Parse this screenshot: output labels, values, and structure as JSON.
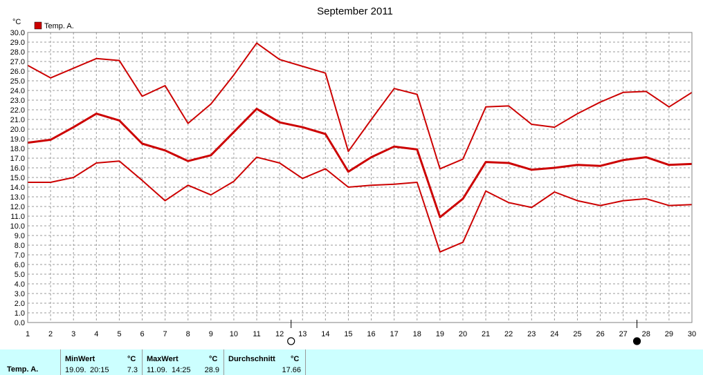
{
  "chart_data": {
    "type": "line",
    "title": "September 2011",
    "unit": "°C",
    "legend": [
      {
        "name": "Temp. A.",
        "color": "#cc0000"
      }
    ],
    "x": [
      1,
      2,
      3,
      4,
      5,
      6,
      7,
      8,
      9,
      10,
      11,
      12,
      13,
      14,
      15,
      16,
      17,
      18,
      19,
      20,
      21,
      22,
      23,
      24,
      25,
      26,
      27,
      28,
      29,
      30
    ],
    "ylim": [
      0,
      30
    ],
    "ytick_step": 1,
    "grid": true,
    "series": [
      {
        "role": "max",
        "values": [
          26.6,
          25.3,
          26.3,
          27.3,
          27.1,
          23.4,
          24.5,
          20.6,
          22.6,
          25.6,
          28.9,
          27.2,
          26.5,
          25.8,
          17.7,
          21.0,
          24.2,
          23.6,
          15.9,
          16.9,
          22.3,
          22.4,
          20.5,
          20.2,
          21.6,
          22.8,
          23.8,
          23.9,
          22.3,
          23.8
        ]
      },
      {
        "role": "mean",
        "values": [
          18.6,
          18.9,
          20.2,
          21.6,
          20.9,
          18.5,
          17.8,
          16.7,
          17.3,
          19.7,
          22.1,
          20.7,
          20.2,
          19.5,
          15.6,
          17.1,
          18.2,
          17.9,
          10.9,
          12.8,
          16.6,
          16.5,
          15.8,
          16.0,
          16.3,
          16.2,
          16.8,
          17.1,
          16.3,
          16.4
        ]
      },
      {
        "role": "min",
        "values": [
          14.5,
          14.5,
          15.0,
          16.5,
          16.7,
          14.7,
          12.6,
          14.2,
          13.2,
          14.6,
          17.1,
          16.5,
          14.9,
          15.9,
          14.0,
          14.2,
          14.3,
          14.5,
          7.3,
          8.3,
          13.6,
          12.4,
          11.9,
          13.5,
          12.6,
          12.1,
          12.6,
          12.8,
          12.1,
          12.2
        ]
      }
    ],
    "moon_markers": [
      {
        "x": 12.5,
        "phase": "full",
        "icon": "full-moon-icon"
      },
      {
        "x": 27.6,
        "phase": "new",
        "icon": "new-moon-icon"
      }
    ]
  },
  "stats": {
    "row_label": "Temp. A.",
    "min": {
      "header": "MinWert",
      "unit": "°C",
      "date": "19.09.",
      "time": "20:15",
      "value": "7.3"
    },
    "max": {
      "header": "MaxWert",
      "unit": "°C",
      "date": "11.09.",
      "time": "14:25",
      "value": "28.9"
    },
    "avg": {
      "header": "Durchschnitt",
      "unit": "°C",
      "value": "17.66"
    }
  }
}
